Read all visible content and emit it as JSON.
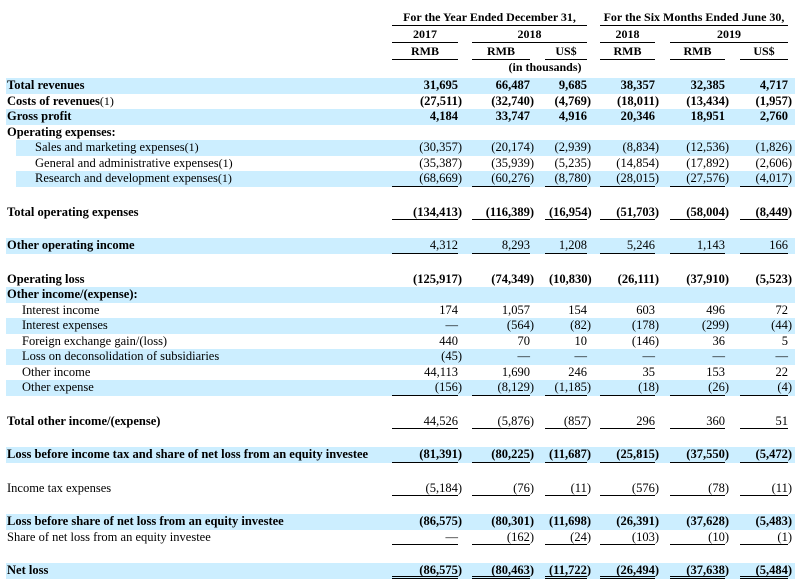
{
  "page": {
    "background": "#ffffff",
    "highlight_color": "#cceeff",
    "text_color": "#000000"
  },
  "header": {
    "group1_title": "For the Year Ended December 31,",
    "group2_title": "For the Six Months Ended June 30,",
    "years": [
      "2017",
      "2018",
      "2018",
      "2019"
    ],
    "currency_labels": [
      "RMB",
      "RMB",
      "US$",
      "RMB",
      "RMB",
      "US$"
    ],
    "unit_note": "(in thousands)"
  },
  "table": {
    "rows": [
      {
        "label": "Total revenues",
        "bold": true,
        "bold_values": true,
        "highlight": true,
        "indent": 0,
        "underline": "none",
        "values": [
          "31,695",
          "66,487",
          "9,685",
          "38,357",
          "32,385",
          "4,717"
        ]
      },
      {
        "label": "Costs of revenues",
        "footnote": "(1)",
        "bold": true,
        "bold_values": true,
        "highlight": false,
        "indent": 0,
        "underline": "none",
        "values": [
          "(27,511)",
          "(32,740)",
          "(4,769)",
          "(18,011)",
          "(13,434)",
          "(1,957)"
        ]
      },
      {
        "label": "Gross profit",
        "bold": true,
        "bold_values": true,
        "highlight": true,
        "indent": 0,
        "underline": "none",
        "values": [
          "4,184",
          "33,747",
          "4,916",
          "20,346",
          "18,951",
          "2,760"
        ]
      },
      {
        "label": "Operating expenses:",
        "bold": true,
        "bold_values": false,
        "highlight": false,
        "indent": 0,
        "underline": "none",
        "values": [
          "",
          "",
          "",
          "",
          "",
          ""
        ]
      },
      {
        "label": "Sales and marketing expenses",
        "footnote": "(1)",
        "bold": false,
        "bold_values": false,
        "highlight": true,
        "band_indent": true,
        "indent": 1,
        "underline": "none",
        "values": [
          "(30,357)",
          "(20,174)",
          "(2,939)",
          "(8,834)",
          "(12,536)",
          "(1,826)"
        ]
      },
      {
        "label": "General and administrative expenses",
        "footnote": "(1)",
        "bold": false,
        "bold_values": false,
        "highlight": false,
        "indent": 1,
        "underline": "none",
        "values": [
          "(35,387)",
          "(35,939)",
          "(5,235)",
          "(14,854)",
          "(17,892)",
          "(2,606)"
        ]
      },
      {
        "label": "Research and development expenses",
        "footnote": "(1)",
        "bold": false,
        "bold_values": false,
        "highlight": true,
        "band_indent": true,
        "indent": 1,
        "underline": "single",
        "values": [
          "(68,669)",
          "(60,276)",
          "(8,780)",
          "(28,015)",
          "(27,576)",
          "(4,017)"
        ]
      },
      {
        "spacer": true
      },
      {
        "label": "Total operating expenses",
        "bold": true,
        "bold_values": true,
        "highlight": false,
        "indent": 0,
        "underline": "single",
        "values": [
          "(134,413)",
          "(116,389)",
          "(16,954)",
          "(51,703)",
          "(58,004)",
          "(8,449)"
        ]
      },
      {
        "spacer": true
      },
      {
        "label": "Other operating income",
        "bold": true,
        "bold_values": false,
        "highlight": true,
        "indent": 0,
        "underline": "single",
        "values": [
          "4,312",
          "8,293",
          "1,208",
          "5,246",
          "1,143",
          "166"
        ]
      },
      {
        "spacer": true
      },
      {
        "label": "Operating loss",
        "bold": true,
        "bold_values": true,
        "highlight": false,
        "indent": 0,
        "underline": "none",
        "values": [
          "(125,917)",
          "(74,349)",
          "(10,830)",
          "(26,111)",
          "(37,910)",
          "(5,523)"
        ]
      },
      {
        "label": "Other income/(expense):",
        "bold": true,
        "bold_values": false,
        "highlight": true,
        "indent": 0,
        "underline": "none",
        "values": [
          "",
          "",
          "",
          "",
          "",
          ""
        ]
      },
      {
        "label": "Interest income",
        "bold": false,
        "bold_values": false,
        "highlight": false,
        "indent": 2,
        "underline": "none",
        "values": [
          "174",
          "1,057",
          "154",
          "603",
          "496",
          "72"
        ]
      },
      {
        "label": "Interest expenses",
        "bold": false,
        "bold_values": false,
        "highlight": true,
        "indent": 2,
        "underline": "none",
        "values": [
          "—",
          "(564)",
          "(82)",
          "(178)",
          "(299)",
          "(44)"
        ]
      },
      {
        "label": "Foreign exchange gain/(loss)",
        "bold": false,
        "bold_values": false,
        "highlight": false,
        "indent": 2,
        "underline": "none",
        "values": [
          "440",
          "70",
          "10",
          "(146)",
          "36",
          "5"
        ]
      },
      {
        "label": "Loss on deconsolidation of subsidiaries",
        "bold": false,
        "bold_values": false,
        "highlight": true,
        "indent": 2,
        "underline": "none",
        "values": [
          "(45)",
          "—",
          "—",
          "—",
          "—",
          "—"
        ]
      },
      {
        "label": "Other income",
        "bold": false,
        "bold_values": false,
        "highlight": false,
        "indent": 2,
        "underline": "none",
        "values": [
          "44,113",
          "1,690",
          "246",
          "35",
          "153",
          "22"
        ]
      },
      {
        "label": "Other expense",
        "bold": false,
        "bold_values": false,
        "highlight": true,
        "indent": 2,
        "underline": "single",
        "values": [
          "(156)",
          "(8,129)",
          "(1,185)",
          "(18)",
          "(26)",
          "(4)"
        ]
      },
      {
        "spacer": true
      },
      {
        "label": "Total other income/(expense)",
        "bold": true,
        "bold_values": false,
        "highlight": false,
        "indent": 0,
        "underline": "single",
        "values": [
          "44,526",
          "(5,876)",
          "(857)",
          "296",
          "360",
          "51"
        ]
      },
      {
        "spacer": true
      },
      {
        "label": "Loss before income tax and share of net loss from an equity investee",
        "bold": true,
        "bold_values": true,
        "highlight": true,
        "indent": 0,
        "underline": "single",
        "values": [
          "(81,391)",
          "(80,225)",
          "(11,687)",
          "(25,815)",
          "(37,550)",
          "(5,472)"
        ]
      },
      {
        "spacer": true
      },
      {
        "label": "Income tax expenses",
        "bold": false,
        "bold_values": false,
        "highlight": false,
        "indent": 0,
        "underline": "single",
        "values": [
          "(5,184)",
          "(76)",
          "(11)",
          "(576)",
          "(78)",
          "(11)"
        ]
      },
      {
        "spacer": true
      },
      {
        "label": "Loss before share of net loss from an equity investee",
        "bold": true,
        "bold_values": true,
        "highlight": true,
        "indent": 0,
        "underline": "none",
        "values": [
          "(86,575)",
          "(80,301)",
          "(11,698)",
          "(26,391)",
          "(37,628)",
          "(5,483)"
        ]
      },
      {
        "label": "Share of net loss from an equity investee",
        "bold": false,
        "bold_values": false,
        "highlight": false,
        "indent": 0,
        "underline": "single",
        "values": [
          "—",
          "(162)",
          "(24)",
          "(103)",
          "(10)",
          "(1)"
        ]
      },
      {
        "spacer": true
      },
      {
        "label": "Net loss",
        "bold": true,
        "bold_values": true,
        "highlight": true,
        "indent": 0,
        "underline": "double",
        "values": [
          "(86,575)",
          "(80,463)",
          "(11,722)",
          "(26,494)",
          "(37,638)",
          "(5,484)"
        ]
      }
    ]
  }
}
